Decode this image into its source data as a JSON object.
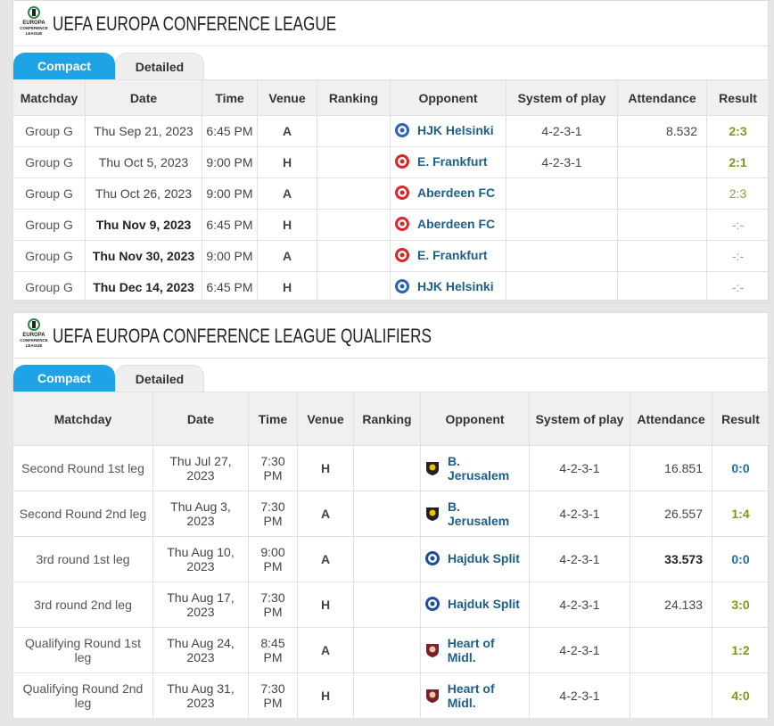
{
  "sections": [
    {
      "title": "UEFA EUROPA CONFERENCE LEAGUE",
      "logo": {
        "lines": [
          "EUROPA",
          "CONFERENCE",
          "LEAGUE"
        ]
      },
      "tabs": [
        "Compact",
        "Detailed"
      ],
      "columns": [
        "Matchday",
        "Date",
        "Time",
        "Venue",
        "Ranking",
        "Opponent",
        "System of play",
        "Attendance",
        "Result"
      ],
      "rows": [
        [
          "Group G",
          "Thu Sep 21, 2023",
          "6:45 PM",
          "A",
          "",
          "HJK Helsinki",
          "4-2-3-1",
          "8.532",
          "2:3"
        ],
        [
          "Group G",
          "Thu Oct 5, 2023",
          "9:00 PM",
          "H",
          "",
          "E. Frankfurt",
          "4-2-3-1",
          "",
          "2:1"
        ],
        [
          "Group G",
          "Thu Oct 26, 2023",
          "9:00 PM",
          "A",
          "",
          "Aberdeen FC",
          "",
          "",
          "2:3"
        ],
        [
          "Group G",
          "Thu Nov 9, 2023",
          "6:45 PM",
          "H",
          "",
          "Aberdeen FC",
          "",
          "",
          "-:-"
        ],
        [
          "Group G",
          "Thu Nov 30, 2023",
          "9:00 PM",
          "A",
          "",
          "E. Frankfurt",
          "",
          "",
          "-:-"
        ],
        [
          "Group G",
          "Thu Dec 14, 2023",
          "6:45 PM",
          "H",
          "",
          "HJK Helsinki",
          "",
          "",
          "-:-"
        ]
      ]
    },
    {
      "title": "UEFA EUROPA CONFERENCE LEAGUE QUALIFIERS",
      "logo": {
        "lines": [
          "EUROPA",
          "CONFERENCE",
          "LEAGUE"
        ]
      },
      "tabs": [
        "Compact",
        "Detailed"
      ],
      "columns": [
        "Matchday",
        "Date",
        "Time",
        "Venue",
        "Ranking",
        "Opponent",
        "System of play",
        "Attendance",
        "Result"
      ],
      "rows": [
        [
          "Second Round 1st leg",
          "Thu Jul 27, 2023",
          "7:30 PM",
          "H",
          "",
          "B. Jerusalem",
          "4-2-3-1",
          "16.851",
          "0:0"
        ],
        [
          "Second Round 2nd leg",
          "Thu Aug 3, 2023",
          "7:30 PM",
          "A",
          "",
          "B. Jerusalem",
          "4-2-3-1",
          "26.557",
          "1:4"
        ],
        [
          "3rd round 1st leg",
          "Thu Aug 10, 2023",
          "9:00 PM",
          "A",
          "",
          "Hajduk Split",
          "4-2-3-1",
          "33.573",
          "0:0"
        ],
        [
          "3rd round 2nd leg",
          "Thu Aug 17, 2023",
          "7:30 PM",
          "H",
          "",
          "Hajduk Split",
          "4-2-3-1",
          "24.133",
          "3:0"
        ],
        [
          "Qualifying Round 1st leg",
          "Thu Aug 24, 2023",
          "8:45 PM",
          "A",
          "",
          "Heart of Midl.",
          "4-2-3-1",
          "",
          "1:2"
        ],
        [
          "Qualifying Round 2nd leg",
          "Thu Aug 31, 2023",
          "7:30 PM",
          "H",
          "",
          "Heart of Midl.",
          "4-2-3-1",
          "",
          "4:0"
        ]
      ]
    }
  ]
}
